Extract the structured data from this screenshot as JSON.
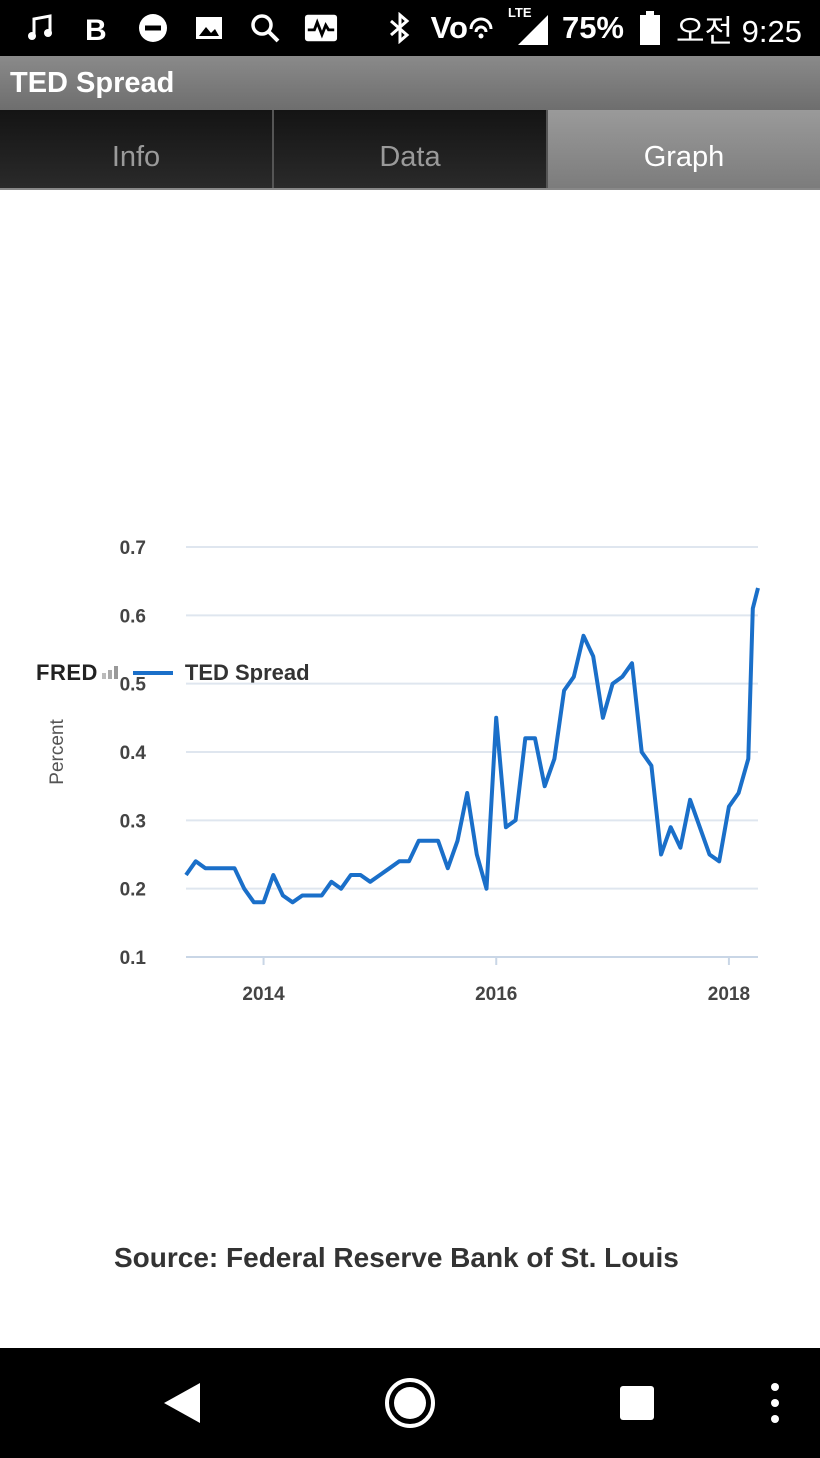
{
  "status_bar": {
    "icons_left": [
      "music-icon",
      "b-app-icon",
      "do-not-disturb-icon",
      "image-icon",
      "search-icon",
      "activity-icon"
    ],
    "icons_right": [
      "bluetooth-icon",
      "volte-icon",
      "lte-signal-icon",
      "battery-icon"
    ],
    "volte": "Vo",
    "lte": "LTE",
    "battery_percent": "75%",
    "time": "오전 9:25"
  },
  "app_bar": {
    "title": "TED Spread"
  },
  "tabs": [
    {
      "label": "Info",
      "active": false
    },
    {
      "label": "Data",
      "active": false
    },
    {
      "label": "Graph",
      "active": true
    }
  ],
  "legend": {
    "logo": "FRED",
    "series_name": "TED Spread"
  },
  "source": "Source: Federal Reserve Bank of St. Louis",
  "colors": {
    "series": "#1a6fc9",
    "grid": "#dfe6ef"
  },
  "chart_data": {
    "type": "line",
    "ylabel": "Percent",
    "xlabel": "",
    "ylim": [
      0.1,
      0.7
    ],
    "yticks": [
      "0.1",
      "0.2",
      "0.3",
      "0.4",
      "0.5",
      "0.6",
      "0.7"
    ],
    "xlim": [
      "2013-05",
      "2018-03"
    ],
    "xticks": [
      "2014",
      "2016",
      "2018"
    ],
    "grid": true,
    "legend_position": "top-left",
    "series": [
      {
        "name": "TED Spread",
        "x": [
          "2013-05",
          "2013-06",
          "2013-07",
          "2013-08",
          "2013-09",
          "2013-10",
          "2013-11",
          "2013-12",
          "2014-01",
          "2014-02",
          "2014-03",
          "2014-04",
          "2014-05",
          "2014-06",
          "2014-07",
          "2014-08",
          "2014-09",
          "2014-10",
          "2014-11",
          "2014-12",
          "2015-01",
          "2015-02",
          "2015-03",
          "2015-04",
          "2015-05",
          "2015-06",
          "2015-07",
          "2015-08",
          "2015-09",
          "2015-10",
          "2015-11",
          "2015-12",
          "2016-01",
          "2016-02",
          "2016-03",
          "2016-04",
          "2016-05",
          "2016-06",
          "2016-07",
          "2016-08",
          "2016-09",
          "2016-10",
          "2016-11",
          "2016-12",
          "2017-01",
          "2017-02",
          "2017-03",
          "2017-04",
          "2017-05",
          "2017-06",
          "2017-07",
          "2017-08",
          "2017-09",
          "2017-10",
          "2017-11",
          "2017-12",
          "2018-01",
          "2018-02",
          "2018-03"
        ],
        "values": [
          0.22,
          0.24,
          0.23,
          0.23,
          0.23,
          0.23,
          0.2,
          0.18,
          0.18,
          0.22,
          0.19,
          0.18,
          0.19,
          0.19,
          0.19,
          0.21,
          0.2,
          0.22,
          0.22,
          0.21,
          0.22,
          0.23,
          0.24,
          0.24,
          0.27,
          0.27,
          0.27,
          0.23,
          0.27,
          0.34,
          0.25,
          0.2,
          0.45,
          0.29,
          0.3,
          0.42,
          0.42,
          0.35,
          0.39,
          0.49,
          0.51,
          0.57,
          0.54,
          0.45,
          0.5,
          0.51,
          0.53,
          0.4,
          0.38,
          0.25,
          0.29,
          0.26,
          0.33,
          0.29,
          0.25,
          0.24,
          0.32,
          0.34,
          0.39
        ]
      }
    ],
    "extra_points": [
      [
        "2018-03-15",
        0.61
      ],
      [
        "2018-04",
        0.64
      ]
    ]
  }
}
